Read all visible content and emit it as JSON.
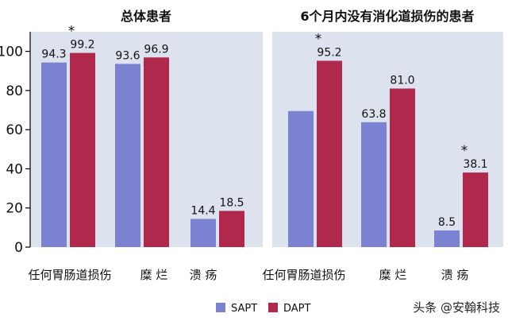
{
  "chart_data": [
    {
      "type": "bar",
      "title": "总体患者",
      "categories": [
        "任何胃肠道损伤",
        "糜 烂",
        "溃 疡"
      ],
      "series": [
        {
          "name": "SAPT",
          "values": [
            94.3,
            93.6,
            14.4
          ],
          "labels": [
            "94.3",
            "93.6",
            "14.4"
          ]
        },
        {
          "name": "DAPT",
          "values": [
            99.2,
            96.9,
            18.5
          ],
          "labels": [
            "99.2",
            "96.9",
            "18.5"
          ]
        }
      ],
      "significant": [
        true,
        false,
        false
      ],
      "significance_marker": "*",
      "ylim": [
        0,
        110
      ],
      "yticks": [
        0,
        20,
        40,
        60,
        80,
        100
      ],
      "yticklabels": [
        "0",
        "20",
        "40",
        "60",
        "80",
        "100"
      ],
      "show_yaxis": true,
      "xlabel": "",
      "ylabel": "",
      "grid": false
    },
    {
      "type": "bar",
      "title": "6个月内没有消化道损伤的患者",
      "categories": [
        "任何胃肠道损伤",
        "糜 烂",
        "溃 疡"
      ],
      "series": [
        {
          "name": "SAPT",
          "values": [
            69.5,
            63.8,
            8.5
          ],
          "labels": [
            "",
            "63.8",
            "8.5"
          ]
        },
        {
          "name": "DAPT",
          "values": [
            95.2,
            81.0,
            38.1
          ],
          "labels": [
            "95.2",
            "81.0",
            "38.1"
          ]
        }
      ],
      "significant": [
        true,
        false,
        true
      ],
      "significance_marker": "*",
      "ylim": [
        0,
        110
      ],
      "show_yaxis": false,
      "xlabel": "",
      "ylabel": "",
      "grid": false
    }
  ],
  "legend": {
    "position": "bottom",
    "items": [
      {
        "name": "SAPT",
        "color": "#7b82d1"
      },
      {
        "name": "DAPT",
        "color": "#b0284c"
      }
    ]
  },
  "colors": {
    "SAPT": "#7b82d1",
    "DAPT": "#b0284c",
    "panel_bg": "#dde3ee"
  },
  "watermark": "头条 @安翰科技"
}
